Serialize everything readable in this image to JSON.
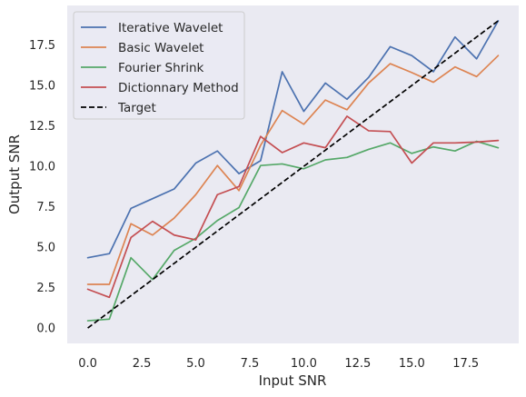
{
  "chart_data": {
    "type": "line",
    "xlabel": "Input SNR",
    "ylabel": "Output SNR",
    "xlim": [
      -0.95,
      19.95
    ],
    "ylim": [
      -0.95,
      19.95
    ],
    "xticks": [
      0.0,
      2.5,
      5.0,
      7.5,
      10.0,
      12.5,
      15.0,
      17.5
    ],
    "yticks": [
      0.0,
      2.5,
      5.0,
      7.5,
      10.0,
      12.5,
      15.0,
      17.5
    ],
    "xtick_labels": [
      "0.0",
      "2.5",
      "5.0",
      "7.5",
      "10.0",
      "12.5",
      "15.0",
      "17.5"
    ],
    "ytick_labels": [
      "0.0",
      "2.5",
      "5.0",
      "7.5",
      "10.0",
      "12.5",
      "15.0",
      "17.5"
    ],
    "grid": false,
    "background": "#eaeaf2",
    "legend_position": "top-left",
    "x": [
      0,
      1,
      2,
      3,
      4,
      5,
      6,
      7,
      8,
      9,
      10,
      11,
      12,
      13,
      14,
      15,
      16,
      17,
      18,
      19
    ],
    "series": [
      {
        "name": "Iterative Wavelet",
        "color": "#4c72b0",
        "style": "solid",
        "values": [
          4.35,
          4.6,
          7.4,
          8.0,
          8.6,
          10.2,
          10.95,
          9.55,
          10.35,
          15.85,
          13.4,
          15.15,
          14.15,
          15.5,
          17.4,
          16.85,
          15.85,
          18.0,
          16.65,
          19.0
        ]
      },
      {
        "name": "Basic Wavelet",
        "color": "#dd8452",
        "style": "solid",
        "values": [
          2.7,
          2.7,
          6.45,
          5.75,
          6.8,
          8.25,
          10.05,
          8.5,
          11.3,
          13.45,
          12.6,
          14.1,
          13.5,
          15.15,
          16.35,
          15.8,
          15.2,
          16.15,
          15.55,
          16.85
        ]
      },
      {
        "name": "Fourier Shrink",
        "color": "#55a868",
        "style": "solid",
        "values": [
          0.45,
          0.55,
          4.35,
          3.0,
          4.8,
          5.55,
          6.65,
          7.45,
          10.05,
          10.15,
          9.85,
          10.4,
          10.55,
          11.05,
          11.45,
          10.8,
          11.2,
          10.95,
          11.55,
          11.15
        ]
      },
      {
        "name": "Dictionnary Method",
        "color": "#c44e52",
        "style": "solid",
        "values": [
          2.4,
          1.9,
          5.6,
          6.6,
          5.75,
          5.45,
          8.25,
          8.75,
          11.85,
          10.85,
          11.45,
          11.15,
          13.1,
          12.2,
          12.15,
          10.2,
          11.45,
          11.45,
          11.5,
          11.6
        ]
      },
      {
        "name": "Target",
        "color": "#000000",
        "style": "dashed",
        "values": [
          0,
          1,
          2,
          3,
          4,
          5,
          6,
          7,
          8,
          9,
          10,
          11,
          12,
          13,
          14,
          15,
          16,
          17,
          18,
          19
        ]
      }
    ]
  }
}
